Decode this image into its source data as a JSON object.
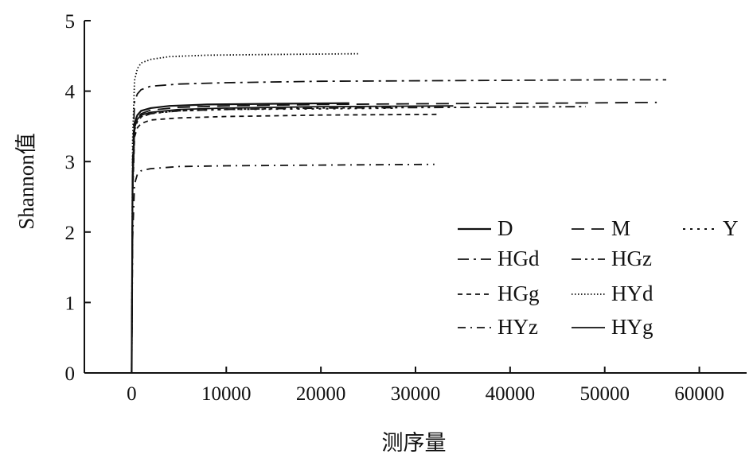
{
  "chart_data": {
    "type": "line",
    "title": "",
    "xlabel": "测序量",
    "ylabel": "Shannon值",
    "xlim": [
      -5000,
      65000
    ],
    "ylim": [
      0,
      5
    ],
    "xticks": [
      0,
      10000,
      20000,
      30000,
      40000,
      50000,
      60000
    ],
    "yticks": [
      0,
      1,
      2,
      3,
      4,
      5
    ],
    "xtick_labels": [
      "0",
      "10000",
      "20000",
      "30000",
      "40000",
      "50000",
      "60000"
    ],
    "ytick_labels": [
      "0",
      "1",
      "2",
      "3",
      "4",
      "5"
    ],
    "grid": false,
    "legend_position": "lower-right",
    "series": [
      {
        "name": "D",
        "style": "solid",
        "x": [
          0,
          100,
          300,
          600,
          1000,
          2000,
          4000,
          8000,
          15000,
          23000
        ],
        "y": [
          0,
          2.8,
          3.55,
          3.66,
          3.72,
          3.76,
          3.79,
          3.81,
          3.82,
          3.83
        ]
      },
      {
        "name": "M",
        "style": "dash",
        "x": [
          0,
          100,
          300,
          600,
          1000,
          2000,
          5000,
          10000,
          20000,
          30000,
          45000,
          55500
        ],
        "y": [
          0,
          2.6,
          3.5,
          3.62,
          3.68,
          3.73,
          3.77,
          3.79,
          3.81,
          3.82,
          3.83,
          3.84
        ]
      },
      {
        "name": "Y",
        "style": "dot",
        "x": [
          0,
          100,
          300,
          600,
          1000,
          2000,
          5000,
          10000,
          20000,
          28000
        ],
        "y": [
          0,
          2.7,
          3.45,
          3.58,
          3.64,
          3.69,
          3.72,
          3.74,
          3.75,
          3.76
        ]
      },
      {
        "name": "HGd",
        "style": "dashdot",
        "x": [
          0,
          100,
          300,
          600,
          1000,
          2000,
          5000,
          10000,
          20000,
          35000,
          50000,
          56500
        ],
        "y": [
          0,
          3.0,
          3.85,
          3.96,
          4.02,
          4.07,
          4.1,
          4.12,
          4.14,
          4.15,
          4.16,
          4.16
        ]
      },
      {
        "name": "HGz",
        "style": "dashdotdot",
        "x": [
          0,
          100,
          300,
          600,
          1000,
          2000,
          5000,
          10000,
          20000,
          35000,
          48000
        ],
        "y": [
          0,
          2.6,
          3.45,
          3.57,
          3.63,
          3.68,
          3.72,
          3.74,
          3.76,
          3.77,
          3.78
        ]
      },
      {
        "name": "HGg",
        "style": "shortdash",
        "x": [
          0,
          100,
          300,
          600,
          1000,
          2000,
          5000,
          10000,
          20000,
          32500
        ],
        "y": [
          0,
          2.5,
          3.35,
          3.48,
          3.54,
          3.59,
          3.62,
          3.64,
          3.66,
          3.67
        ]
      },
      {
        "name": "HYd",
        "style": "finedot",
        "x": [
          0,
          100,
          300,
          600,
          1000,
          2000,
          4000,
          8000,
          15000,
          24000
        ],
        "y": [
          0,
          3.3,
          4.15,
          4.32,
          4.4,
          4.45,
          4.49,
          4.51,
          4.52,
          4.53
        ]
      },
      {
        "name": "HYz",
        "style": "dashdot2",
        "x": [
          0,
          100,
          300,
          600,
          1000,
          2000,
          5000,
          10000,
          20000,
          32000
        ],
        "y": [
          0,
          1.9,
          2.68,
          2.82,
          2.87,
          2.9,
          2.93,
          2.94,
          2.95,
          2.96
        ]
      },
      {
        "name": "HYg",
        "style": "solid2",
        "x": [
          0,
          100,
          300,
          600,
          1000,
          2000,
          5000,
          10000,
          20000,
          34000
        ],
        "y": [
          0,
          2.7,
          3.48,
          3.6,
          3.66,
          3.7,
          3.74,
          3.76,
          3.78,
          3.79
        ]
      }
    ]
  }
}
